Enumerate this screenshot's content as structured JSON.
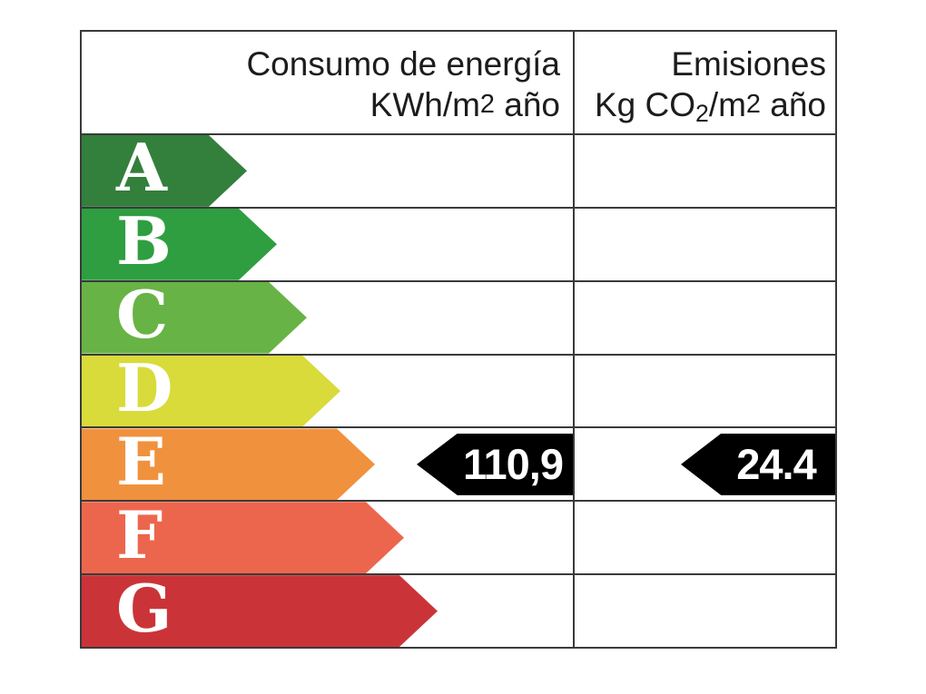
{
  "header": {
    "consumption": {
      "line1": "Consumo de energía",
      "unit_pre": "KWh/m",
      "unit_exp": "2",
      "unit_post": " año"
    },
    "emissions": {
      "line1": "Emisiones",
      "unit_pre": "Kg CO",
      "unit_sub": "2",
      "unit_mid": "/m",
      "unit_exp": "2",
      "unit_post": " año"
    }
  },
  "scale": {
    "border_color": "#3a3a3a",
    "letter_color": "#ffffff",
    "ratings": [
      {
        "letter": "A",
        "color": "#337f3c",
        "arrow_width": 182
      },
      {
        "letter": "B",
        "color": "#2f9e41",
        "arrow_width": 215
      },
      {
        "letter": "C",
        "color": "#68b345",
        "arrow_width": 248
      },
      {
        "letter": "D",
        "color": "#d8db3a",
        "arrow_width": 285
      },
      {
        "letter": "E",
        "color": "#f0913e",
        "arrow_width": 323
      },
      {
        "letter": "F",
        "color": "#ec664d",
        "arrow_width": 355
      },
      {
        "letter": "G",
        "color": "#ca3438",
        "arrow_width": 392
      }
    ]
  },
  "values": {
    "rating": "E",
    "consumption_value": "110,9",
    "emissions_value": "24.4",
    "arrow_bg": "#000000",
    "value_text_color": "#ffffff"
  },
  "chart_data": {
    "type": "table",
    "title": "",
    "columns": [
      "Consumo de energía KWh/m2 año",
      "Emisiones Kg CO2/m2 año"
    ],
    "rating_scale": [
      "A",
      "B",
      "C",
      "D",
      "E",
      "F",
      "G"
    ],
    "rating_colors": [
      "#337f3c",
      "#2f9e41",
      "#68b345",
      "#d8db3a",
      "#f0913e",
      "#ec664d",
      "#ca3438"
    ],
    "selected_rating": "E",
    "values": {
      "consumo_kwh_m2_ano": "110,9",
      "emisiones_kg_co2_m2_ano": "24.4"
    }
  }
}
